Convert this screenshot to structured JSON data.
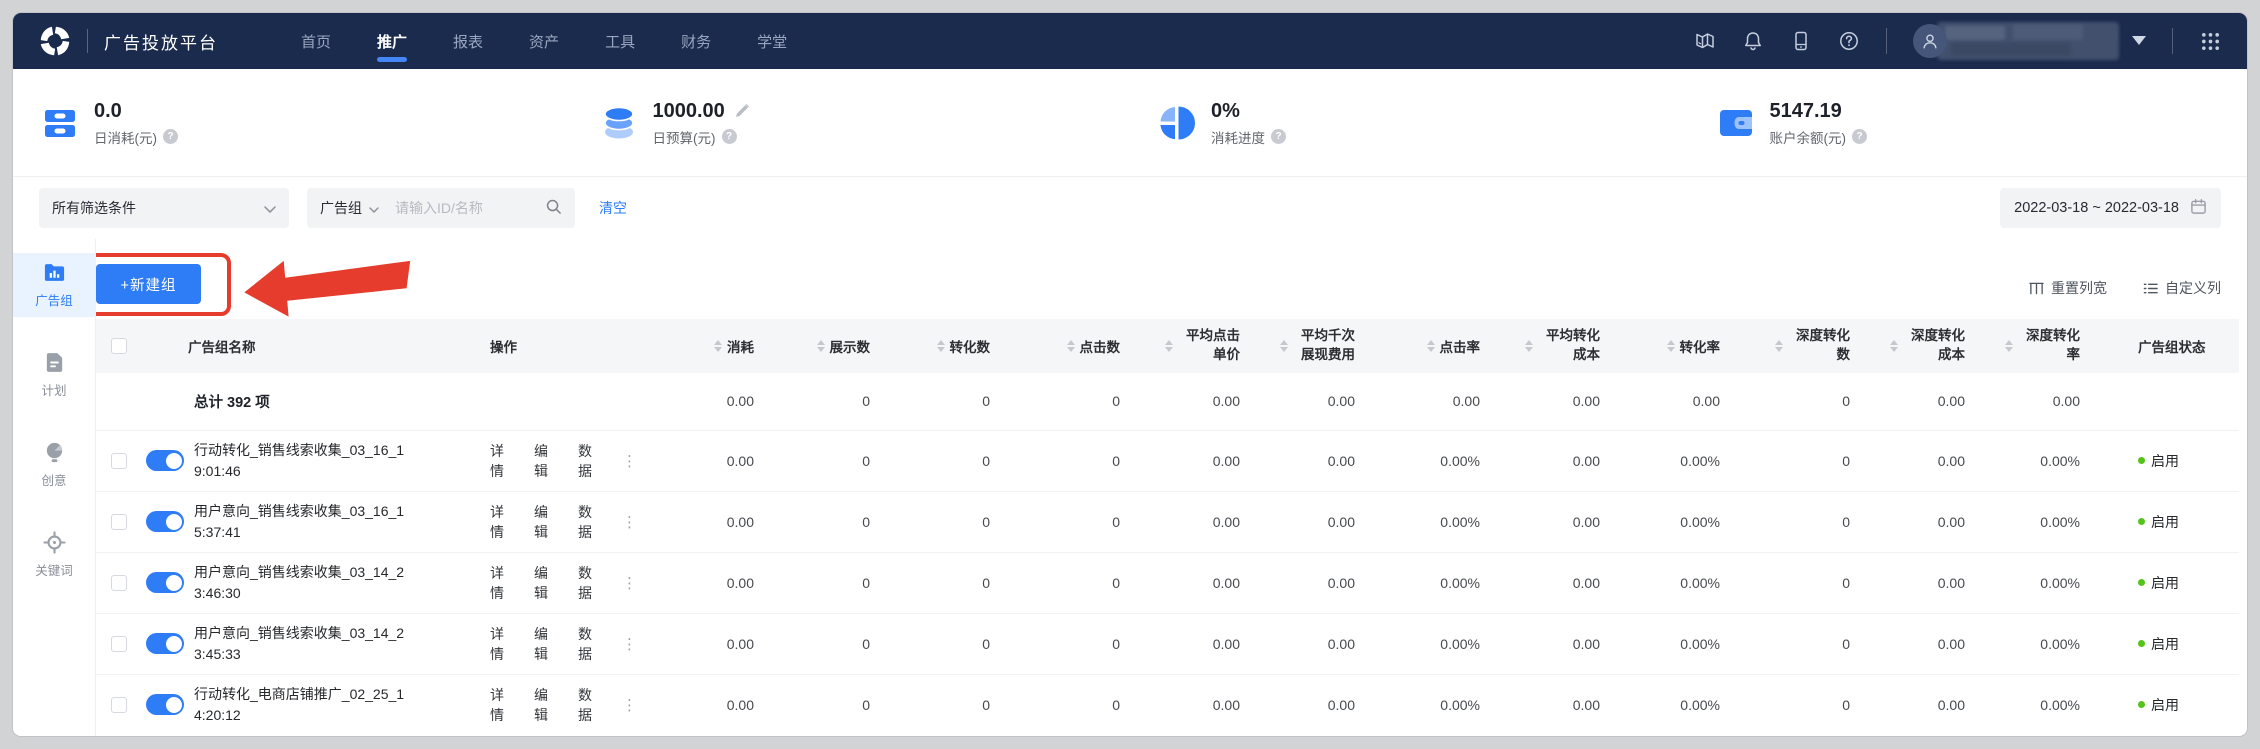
{
  "navbar": {
    "brand": "广告投放平台",
    "items": [
      {
        "label": "首页",
        "active": false
      },
      {
        "label": "推广",
        "active": true
      },
      {
        "label": "报表",
        "active": false
      },
      {
        "label": "资产",
        "active": false
      },
      {
        "label": "工具",
        "active": false
      },
      {
        "label": "财务",
        "active": false
      },
      {
        "label": "学堂",
        "active": false
      }
    ],
    "user_hint": "z..."
  },
  "stats": [
    {
      "icon": "daily-spend-icon",
      "value": "0.0",
      "label": "日消耗(元)",
      "editable": false
    },
    {
      "icon": "daily-budget-icon",
      "value": "1000.00",
      "label": "日预算(元)",
      "editable": true
    },
    {
      "icon": "spend-progress-icon",
      "value": "0%",
      "label": "消耗进度",
      "editable": false
    },
    {
      "icon": "account-balance-icon",
      "value": "5147.19",
      "label": "账户余额(元)",
      "editable": false
    }
  ],
  "filters": {
    "preset_select": "所有筛选条件",
    "entity_select": "广告组",
    "search_placeholder": "请输入ID/名称",
    "clear_label": "清空",
    "date_range": "2022-03-18  ~ 2022-03-18"
  },
  "sidebar": [
    {
      "label": "广告组",
      "icon": "adgroup-icon",
      "active": true
    },
    {
      "label": "计划",
      "icon": "plan-icon",
      "active": false
    },
    {
      "label": "创意",
      "icon": "idea-icon",
      "active": false
    },
    {
      "label": "关键词",
      "icon": "keyword-icon",
      "active": false
    }
  ],
  "toolbar": {
    "new_group_label": "+新建组",
    "reset_columns_label": "重置列宽",
    "customize_columns_label": "自定义列"
  },
  "table": {
    "headers": {
      "name": "广告组名称",
      "actions": "操作",
      "metrics": [
        "消耗",
        "展示数",
        "转化数",
        "点击数",
        "平均点击单价",
        "平均千次展现费用",
        "点击率",
        "平均转化成本",
        "转化率",
        "深度转化数",
        "深度转化成本",
        "深度转化率"
      ],
      "status": "广告组状态"
    },
    "total_row": {
      "label": "总计 392 项",
      "values": [
        "0.00",
        "0",
        "0",
        "0",
        "0.00",
        "0.00",
        "0.00",
        "0.00",
        "0.00",
        "0",
        "0.00",
        "0.00"
      ]
    },
    "row_actions": [
      {
        "key": "detail",
        "label": "详情"
      },
      {
        "key": "edit",
        "label": "编辑"
      },
      {
        "key": "data",
        "label": "数据"
      }
    ],
    "rows": [
      {
        "name": "行动转化_销售线索收集_03_16_1",
        "time": "9:01:46",
        "enabled": true,
        "values": [
          "0.00",
          "0",
          "0",
          "0",
          "0.00",
          "0.00",
          "0.00%",
          "0.00",
          "0.00%",
          "0",
          "0.00",
          "0.00%"
        ],
        "status": "启用"
      },
      {
        "name": "用户意向_销售线索收集_03_16_1",
        "time": "5:37:41",
        "enabled": true,
        "values": [
          "0.00",
          "0",
          "0",
          "0",
          "0.00",
          "0.00",
          "0.00%",
          "0.00",
          "0.00%",
          "0",
          "0.00",
          "0.00%"
        ],
        "status": "启用"
      },
      {
        "name": "用户意向_销售线索收集_03_14_2",
        "time": "3:46:30",
        "enabled": true,
        "values": [
          "0.00",
          "0",
          "0",
          "0",
          "0.00",
          "0.00",
          "0.00%",
          "0.00",
          "0.00%",
          "0",
          "0.00",
          "0.00%"
        ],
        "status": "启用"
      },
      {
        "name": "用户意向_销售线索收集_03_14_2",
        "time": "3:45:33",
        "enabled": true,
        "values": [
          "0.00",
          "0",
          "0",
          "0",
          "0.00",
          "0.00",
          "0.00%",
          "0.00",
          "0.00%",
          "0",
          "0.00",
          "0.00%"
        ],
        "status": "启用"
      },
      {
        "name": "行动转化_电商店铺推广_02_25_1",
        "time": "4:20:12",
        "enabled": true,
        "values": [
          "0.00",
          "0",
          "0",
          "0",
          "0.00",
          "0.00",
          "0.00%",
          "0.00",
          "0.00%",
          "0",
          "0.00",
          "0.00%"
        ],
        "status": "启用"
      }
    ]
  },
  "colors": {
    "accent": "#2E7CF6",
    "navbar_bg": "#1B2B4E",
    "annotation_red": "#E63C2E",
    "status_green": "#52C41A"
  }
}
